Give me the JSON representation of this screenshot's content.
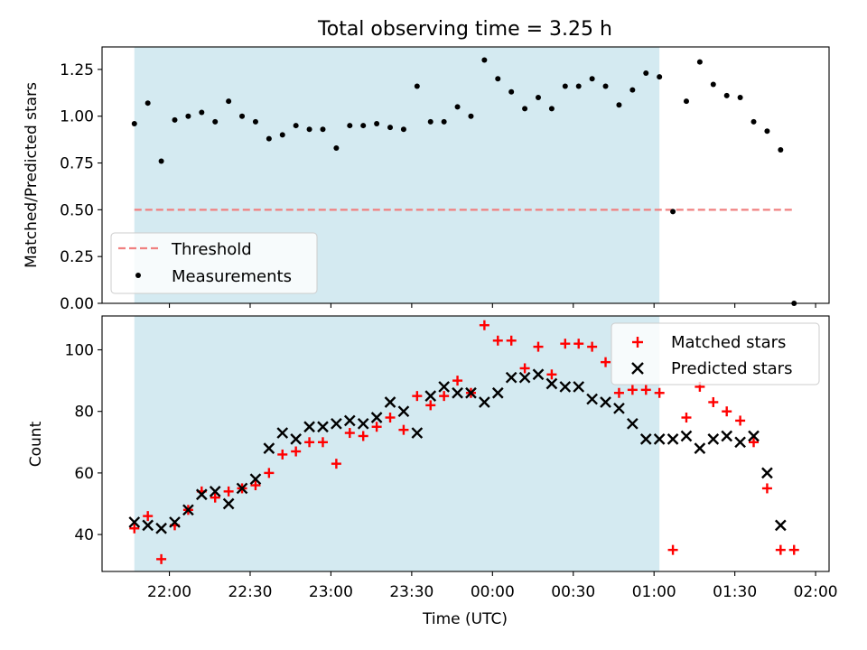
{
  "chart_data": [
    {
      "type": "scatter",
      "title": "Total observing time = 3.25 h",
      "ylabel": "Matched/Predicted stars",
      "xlabel": "",
      "xlim": [
        "21:35",
        "02:05"
      ],
      "ylim": [
        0,
        1.37
      ],
      "x_ticks": [
        "22:00",
        "22:30",
        "23:00",
        "23:30",
        "00:00",
        "00:30",
        "01:00",
        "01:30",
        "02:00"
      ],
      "y_ticks": [
        "0.00",
        "0.25",
        "0.50",
        "0.75",
        "1.00",
        "1.25"
      ],
      "shaded_span": [
        "21:47",
        "01:02"
      ],
      "shaded_color": "#d4eaf1",
      "threshold": {
        "name": "Threshold",
        "value": 0.5,
        "x_range": [
          "21:47",
          "01:52"
        ],
        "color": "#f08080",
        "style": "dashed"
      },
      "series": [
        {
          "name": "Measurements",
          "marker": "dot",
          "color": "#000000",
          "points": [
            [
              "21:47",
              0.96
            ],
            [
              "21:52",
              1.07
            ],
            [
              "21:57",
              0.76
            ],
            [
              "22:02",
              0.98
            ],
            [
              "22:07",
              1.0
            ],
            [
              "22:12",
              1.02
            ],
            [
              "22:17",
              0.97
            ],
            [
              "22:22",
              1.08
            ],
            [
              "22:27",
              1.0
            ],
            [
              "22:32",
              0.97
            ],
            [
              "22:37",
              0.88
            ],
            [
              "22:42",
              0.9
            ],
            [
              "22:47",
              0.95
            ],
            [
              "22:52",
              0.93
            ],
            [
              "22:57",
              0.93
            ],
            [
              "23:02",
              0.83
            ],
            [
              "23:07",
              0.95
            ],
            [
              "23:12",
              0.95
            ],
            [
              "23:17",
              0.96
            ],
            [
              "23:22",
              0.94
            ],
            [
              "23:27",
              0.93
            ],
            [
              "23:32",
              1.16
            ],
            [
              "23:37",
              0.97
            ],
            [
              "23:42",
              0.97
            ],
            [
              "23:47",
              1.05
            ],
            [
              "23:52",
              1.0
            ],
            [
              "23:57",
              1.3
            ],
            [
              "00:02",
              1.2
            ],
            [
              "00:07",
              1.13
            ],
            [
              "00:12",
              1.04
            ],
            [
              "00:17",
              1.1
            ],
            [
              "00:22",
              1.04
            ],
            [
              "00:27",
              1.16
            ],
            [
              "00:32",
              1.16
            ],
            [
              "00:37",
              1.2
            ],
            [
              "00:42",
              1.16
            ],
            [
              "00:47",
              1.06
            ],
            [
              "00:52",
              1.14
            ],
            [
              "00:57",
              1.23
            ],
            [
              "01:02",
              1.21
            ],
            [
              "01:07",
              0.49
            ],
            [
              "01:12",
              1.08
            ],
            [
              "01:17",
              1.29
            ],
            [
              "01:22",
              1.17
            ],
            [
              "01:27",
              1.11
            ],
            [
              "01:32",
              1.1
            ],
            [
              "01:37",
              0.97
            ],
            [
              "01:42",
              0.92
            ],
            [
              "01:47",
              0.82
            ],
            [
              "01:52",
              0.0
            ]
          ]
        }
      ],
      "legend": "lower-left",
      "grid": false
    },
    {
      "type": "scatter",
      "title": "",
      "xlabel": "Time (UTC)",
      "ylabel": "Count",
      "xlim": [
        "21:35",
        "02:05"
      ],
      "ylim": [
        28,
        111
      ],
      "x_ticks": [
        "22:00",
        "22:30",
        "23:00",
        "23:30",
        "00:00",
        "00:30",
        "01:00",
        "01:30",
        "02:00"
      ],
      "y_ticks": [
        "40",
        "60",
        "80",
        "100"
      ],
      "shaded_span": [
        "21:47",
        "01:02"
      ],
      "shaded_color": "#d4eaf1",
      "series": [
        {
          "name": "Matched stars",
          "marker": "plus",
          "color": "#ff0000",
          "points": [
            [
              "21:47",
              42
            ],
            [
              "21:52",
              46
            ],
            [
              "21:57",
              32
            ],
            [
              "22:02",
              43
            ],
            [
              "22:07",
              48
            ],
            [
              "22:12",
              54
            ],
            [
              "22:17",
              52
            ],
            [
              "22:22",
              54
            ],
            [
              "22:27",
              55
            ],
            [
              "22:32",
              56
            ],
            [
              "22:37",
              60
            ],
            [
              "22:42",
              66
            ],
            [
              "22:47",
              67
            ],
            [
              "22:52",
              70
            ],
            [
              "22:57",
              70
            ],
            [
              "23:02",
              63
            ],
            [
              "23:07",
              73
            ],
            [
              "23:12",
              72
            ],
            [
              "23:17",
              75
            ],
            [
              "23:22",
              78
            ],
            [
              "23:27",
              74
            ],
            [
              "23:32",
              85
            ],
            [
              "23:37",
              82
            ],
            [
              "23:42",
              85
            ],
            [
              "23:47",
              90
            ],
            [
              "23:52",
              86
            ],
            [
              "23:57",
              108
            ],
            [
              "00:02",
              103
            ],
            [
              "00:07",
              103
            ],
            [
              "00:12",
              94
            ],
            [
              "00:17",
              101
            ],
            [
              "00:22",
              92
            ],
            [
              "00:27",
              102
            ],
            [
              "00:32",
              102
            ],
            [
              "00:37",
              101
            ],
            [
              "00:42",
              96
            ],
            [
              "00:47",
              86
            ],
            [
              "00:52",
              87
            ],
            [
              "00:57",
              87
            ],
            [
              "01:02",
              86
            ],
            [
              "01:07",
              35
            ],
            [
              "01:12",
              78
            ],
            [
              "01:17",
              88
            ],
            [
              "01:22",
              83
            ],
            [
              "01:27",
              80
            ],
            [
              "01:32",
              77
            ],
            [
              "01:37",
              70
            ],
            [
              "01:42",
              55
            ],
            [
              "01:47",
              35
            ],
            [
              "01:52",
              35
            ]
          ]
        },
        {
          "name": "Predicted stars",
          "marker": "x",
          "color": "#000000",
          "points": [
            [
              "21:47",
              44
            ],
            [
              "21:52",
              43
            ],
            [
              "21:57",
              42
            ],
            [
              "22:02",
              44
            ],
            [
              "22:07",
              48
            ],
            [
              "22:12",
              53
            ],
            [
              "22:17",
              54
            ],
            [
              "22:22",
              50
            ],
            [
              "22:27",
              55
            ],
            [
              "22:32",
              58
            ],
            [
              "22:37",
              68
            ],
            [
              "22:42",
              73
            ],
            [
              "22:47",
              71
            ],
            [
              "22:52",
              75
            ],
            [
              "22:57",
              75
            ],
            [
              "23:02",
              76
            ],
            [
              "23:07",
              77
            ],
            [
              "23:12",
              76
            ],
            [
              "23:17",
              78
            ],
            [
              "23:22",
              83
            ],
            [
              "23:27",
              80
            ],
            [
              "23:32",
              73
            ],
            [
              "23:37",
              85
            ],
            [
              "23:42",
              88
            ],
            [
              "23:47",
              86
            ],
            [
              "23:52",
              86
            ],
            [
              "23:57",
              83
            ],
            [
              "00:02",
              86
            ],
            [
              "00:07",
              91
            ],
            [
              "00:12",
              91
            ],
            [
              "00:17",
              92
            ],
            [
              "00:22",
              89
            ],
            [
              "00:27",
              88
            ],
            [
              "00:32",
              88
            ],
            [
              "00:37",
              84
            ],
            [
              "00:42",
              83
            ],
            [
              "00:47",
              81
            ],
            [
              "00:52",
              76
            ],
            [
              "00:57",
              71
            ],
            [
              "01:02",
              71
            ],
            [
              "01:07",
              71
            ],
            [
              "01:12",
              72
            ],
            [
              "01:17",
              68
            ],
            [
              "01:22",
              71
            ],
            [
              "01:27",
              72
            ],
            [
              "01:32",
              70
            ],
            [
              "01:37",
              72
            ],
            [
              "01:42",
              60
            ],
            [
              "01:47",
              43
            ]
          ]
        }
      ],
      "legend": "top-right",
      "grid": false
    }
  ]
}
